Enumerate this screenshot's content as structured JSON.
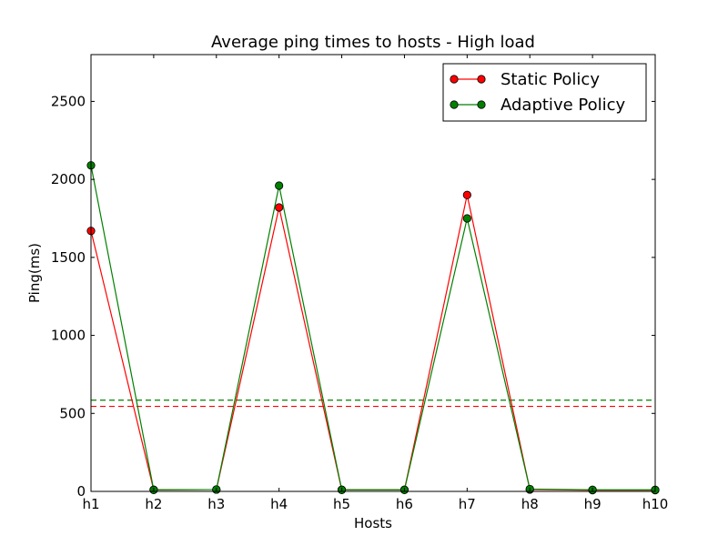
{
  "chart_data": {
    "type": "line",
    "title": "Average ping times to hosts - High load",
    "xlabel": "Hosts",
    "ylabel": "Ping(ms)",
    "categories": [
      "h1",
      "h2",
      "h3",
      "h4",
      "h5",
      "h6",
      "h7",
      "h8",
      "h9",
      "h10"
    ],
    "ylim": [
      0,
      2800
    ],
    "yticks": [
      0,
      500,
      1000,
      1500,
      2000,
      2500
    ],
    "grid": false,
    "legend_position": "top-right",
    "series": [
      {
        "name": "Static Policy",
        "color": "#ff0000",
        "marker": "circle",
        "values": [
          1670,
          10,
          12,
          1820,
          10,
          10,
          1900,
          12,
          8,
          8
        ]
      },
      {
        "name": "Adaptive Policy",
        "color": "#008000",
        "marker": "circle",
        "values": [
          2090,
          10,
          12,
          1960,
          10,
          10,
          1750,
          15,
          10,
          10
        ]
      }
    ],
    "reference_lines": [
      {
        "series": "Static Policy",
        "y": 545,
        "color": "#ff0000",
        "style": "dashed"
      },
      {
        "series": "Adaptive Policy",
        "y": 585,
        "color": "#008000",
        "style": "dashed"
      }
    ]
  }
}
